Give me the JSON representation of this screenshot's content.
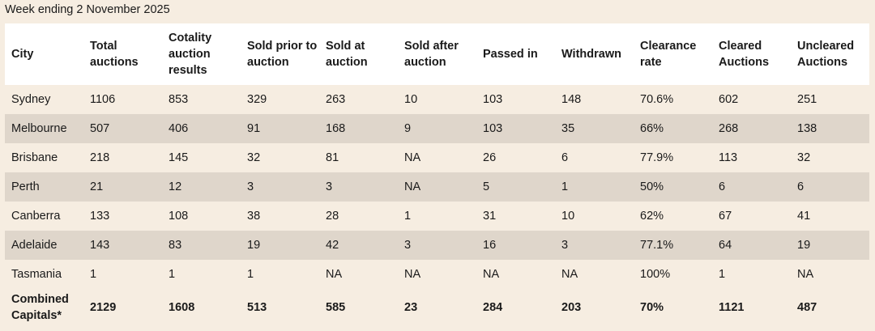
{
  "caption": "Week ending 2 November 2025",
  "columns": [
    "City",
    "Total auctions",
    "Cotality auction results",
    "Sold prior to auction",
    "Sold at auction",
    "Sold after auction",
    "Passed in",
    "Withdrawn",
    "Clearance rate",
    "Cleared Auctions",
    "Uncleared Auctions"
  ],
  "rows": [
    [
      "Sydney",
      "1106",
      "853",
      "329",
      "263",
      "10",
      "103",
      "148",
      "70.6%",
      "602",
      "251"
    ],
    [
      "Melbourne",
      "507",
      "406",
      "91",
      "168",
      "9",
      "103",
      "35",
      "66%",
      "268",
      "138"
    ],
    [
      "Brisbane",
      "218",
      "145",
      "32",
      "81",
      "NA",
      "26",
      "6",
      "77.9%",
      "113",
      "32"
    ],
    [
      "Perth",
      "21",
      "12",
      "3",
      "3",
      "NA",
      "5",
      "1",
      "50%",
      "6",
      "6"
    ],
    [
      "Canberra",
      "133",
      "108",
      "38",
      "28",
      "1",
      "31",
      "10",
      "62%",
      "67",
      "41"
    ],
    [
      "Adelaide",
      "143",
      "83",
      "19",
      "42",
      "3",
      "16",
      "3",
      "77.1%",
      "64",
      "19"
    ],
    [
      "Tasmania",
      "1",
      "1",
      "1",
      "NA",
      "NA",
      "NA",
      "NA",
      "100%",
      "1",
      "NA"
    ]
  ],
  "total_row": [
    "Combined Capitals*",
    "2129",
    "1608",
    "513",
    "585",
    "23",
    "284",
    "203",
    "70%",
    "1121",
    "487"
  ],
  "colors": {
    "background": "#f6ede1",
    "header_background": "#ffffff",
    "alternate_row": "#dfd6cb",
    "text": "#1a1a1a"
  }
}
